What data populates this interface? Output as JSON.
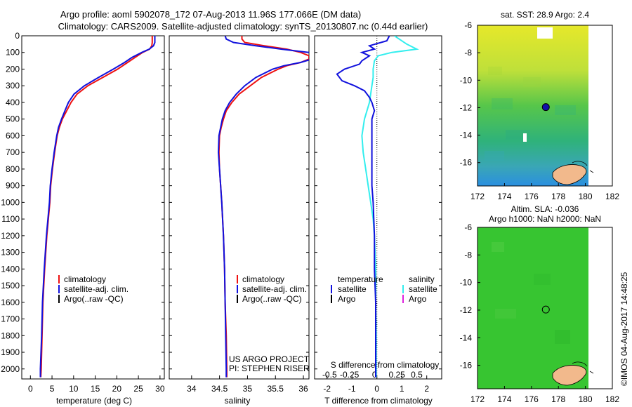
{
  "figure": {
    "title_line1": "Argo profile: aoml 5902078_172 07-Aug-2013 11.96S 177.066E (DM data)",
    "title_line2": "Climatology: CARS2009. Satellite-adjusted climatology: synTS_20130807.nc (0.44d earlier)",
    "watermark": "©IMOS 04-Aug-2017 14:48:25"
  },
  "colors": {
    "climatology": "#ee1111",
    "satellite": "#1111dd",
    "argo": "#000000",
    "salinity_satellite": "#33eeee",
    "salinity_argo": "#dd22dd"
  },
  "chart_data": [
    {
      "type": "line",
      "id": "temperature",
      "xlabel": "temperature (deg C)",
      "ylabel": "",
      "xlim": [
        -2,
        31
      ],
      "ylim": [
        2060,
        0
      ],
      "xticks": [
        0,
        5,
        10,
        15,
        20,
        25,
        30
      ],
      "yticks": [
        0,
        100,
        200,
        300,
        400,
        500,
        600,
        700,
        800,
        900,
        1000,
        1100,
        1200,
        1300,
        1400,
        1500,
        1600,
        1700,
        1800,
        1900,
        2000
      ],
      "legend": [
        "climatology",
        "satellite-adj. clim.",
        "Argo(..raw -QC)"
      ],
      "series": [
        {
          "name": "climatology",
          "depth": [
            0,
            40,
            60,
            80,
            100,
            130,
            160,
            200,
            250,
            300,
            350,
            400,
            450,
            500,
            550,
            600,
            700,
            800,
            900,
            1000,
            1200,
            1400,
            1600,
            1800,
            2000,
            2050
          ],
          "values": [
            28.2,
            28.2,
            28.1,
            27.6,
            26.0,
            24.2,
            22.5,
            20.2,
            16.8,
            13.3,
            10.8,
            9.4,
            8.4,
            7.4,
            6.7,
            6.2,
            5.6,
            5.1,
            4.7,
            4.5,
            3.8,
            3.3,
            2.9,
            2.7,
            2.5,
            2.4
          ]
        },
        {
          "name": "satellite-adj. clim.",
          "depth": [
            0,
            40,
            60,
            80,
            100,
            130,
            160,
            200,
            250,
            300,
            350,
            400,
            450,
            500,
            550,
            600,
            700,
            800,
            900,
            1000,
            1200,
            1400,
            1600,
            1800,
            2000,
            2050
          ],
          "values": [
            28.8,
            28.8,
            28.5,
            27.5,
            25.8,
            23.5,
            21.8,
            19.2,
            15.8,
            12.5,
            10.1,
            8.8,
            8.0,
            7.2,
            6.5,
            6.1,
            5.5,
            5.0,
            4.6,
            4.4,
            3.7,
            3.2,
            2.8,
            2.6,
            2.3,
            2.3
          ]
        }
      ]
    },
    {
      "type": "line",
      "id": "salinity",
      "xlabel": "salinity",
      "xlim": [
        33.6,
        36.1
      ],
      "ylim": [
        2060,
        0
      ],
      "xticks": [
        34,
        34.5,
        35,
        35.5,
        36
      ],
      "legend": [
        "climatology",
        "satellite-adj. clim.",
        "Argo(..raw -QC)"
      ],
      "series": [
        {
          "name": "climatology",
          "depth": [
            0,
            20,
            40,
            60,
            80,
            100,
            120,
            140,
            160,
            180,
            200,
            250,
            300,
            350,
            400,
            450,
            500,
            550,
            600,
            700,
            800,
            900,
            1000,
            1200,
            1400,
            1600,
            1800,
            2000,
            2050
          ],
          "values": [
            34.9,
            34.9,
            34.95,
            35.3,
            35.7,
            35.95,
            36.1,
            36.1,
            35.95,
            35.7,
            35.55,
            35.25,
            35.05,
            34.85,
            34.72,
            34.62,
            34.57,
            34.53,
            34.5,
            34.49,
            34.5,
            34.52,
            34.54,
            34.57,
            34.59,
            34.6,
            34.62,
            34.63,
            34.63
          ]
        },
        {
          "name": "satellite-adj. clim.",
          "depth": [
            0,
            20,
            40,
            60,
            80,
            100,
            120,
            140,
            160,
            180,
            200,
            250,
            300,
            350,
            400,
            450,
            500,
            550,
            600,
            700,
            800,
            900,
            1000,
            1200,
            1400,
            1600,
            1800,
            2000,
            2050
          ],
          "values": [
            34.6,
            34.62,
            34.75,
            35.15,
            35.6,
            36.1,
            36.2,
            36.15,
            35.95,
            35.65,
            35.45,
            35.15,
            34.95,
            34.8,
            34.68,
            34.6,
            34.55,
            34.52,
            34.49,
            34.48,
            34.5,
            34.52,
            34.54,
            34.57,
            34.59,
            34.6,
            34.61,
            34.62,
            34.62
          ]
        }
      ],
      "annotation_line1": "US ARGO PROJECT",
      "annotation_line2": "PI: STEPHEN RISER"
    },
    {
      "type": "line",
      "id": "difference",
      "xlabel": "T difference from climatology",
      "xlabel_top": "S difference from climatology",
      "xlim": [
        -2.5,
        2.6
      ],
      "ylim": [
        2060,
        0
      ],
      "xticks": [
        -2,
        -1,
        0,
        1,
        2
      ],
      "sticks_pos": [
        -1.9,
        -1.1,
        -0.1,
        0.8,
        1.6
      ],
      "sticks_labels": [
        "-0.5",
        "-0.25",
        "0",
        "0.25",
        "0.5"
      ],
      "legend_temperature_title": "temperature",
      "legend_salinity_title": "salinity",
      "legend_satellite": "satellite",
      "legend_argo": "Argo",
      "series": [
        {
          "name": "temperature satellite",
          "depth": [
            0,
            30,
            60,
            80,
            100,
            120,
            150,
            170,
            200,
            230,
            270,
            300,
            330,
            370,
            400,
            450,
            500,
            600,
            700,
            800,
            900,
            1000,
            1200,
            1400,
            1600,
            1800,
            2000,
            2050
          ],
          "values": [
            0.5,
            0.4,
            -0.3,
            -0.1,
            -0.6,
            -0.3,
            -0.6,
            -0.7,
            -1.3,
            -1.6,
            -1.4,
            -0.9,
            -0.5,
            -0.3,
            -0.2,
            -0.1,
            -0.2,
            -0.2,
            -0.2,
            -0.2,
            -0.2,
            -0.15,
            -0.1,
            -0.1,
            -0.05,
            -0.05,
            -0.05,
            -0.05
          ]
        },
        {
          "name": "salinity satellite",
          "depth": [
            0,
            50,
            80,
            100,
            120,
            150,
            200,
            250,
            300,
            400,
            500,
            600,
            700,
            800,
            900,
            1000,
            1100,
            1200,
            1400,
            1600,
            1800,
            2000,
            2050
          ],
          "values": [
            0.7,
            1.2,
            1.6,
            0.6,
            0.05,
            -0.1,
            -0.15,
            -0.15,
            -0.2,
            -0.3,
            -0.5,
            -0.6,
            -0.55,
            -0.45,
            -0.35,
            -0.25,
            -0.15,
            -0.1,
            -0.05,
            -0.05,
            -0.03,
            -0.03,
            -0.03
          ]
        }
      ]
    },
    {
      "type": "heatmap",
      "id": "sst-map",
      "title": "sat. SST: 28.9 Argo: 2.4",
      "xlim": [
        172,
        182
      ],
      "ylim": [
        -17.7,
        -6
      ],
      "xticks": [
        172,
        174,
        176,
        178,
        180,
        182
      ],
      "yticks": [
        -6,
        -8,
        -10,
        -12,
        -14,
        -16
      ],
      "profile_location": [
        177.066,
        -11.96
      ]
    },
    {
      "type": "heatmap",
      "id": "sla-map",
      "title_line1": "Altim. SLA: -0.036",
      "title_line2": "Argo h1000: NaN h2000: NaN",
      "xlim": [
        172,
        182
      ],
      "ylim": [
        -17.7,
        -6
      ],
      "xticks": [
        172,
        174,
        176,
        178,
        180,
        182
      ],
      "yticks": [
        -6,
        -8,
        -10,
        -12,
        -14,
        -16
      ],
      "profile_location": [
        177.066,
        -11.96
      ]
    }
  ]
}
